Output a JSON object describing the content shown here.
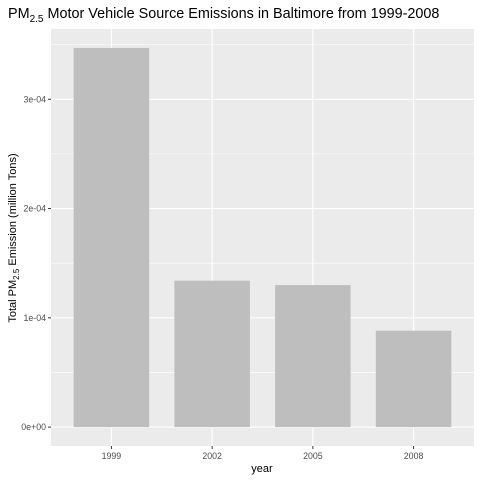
{
  "chart_data": {
    "type": "bar",
    "title": {
      "pre": "PM",
      "sub": "2.5",
      "post": " Motor Vehicle Source Emissions in Baltimore from 1999-2008"
    },
    "xlabel": "year",
    "ylabel": {
      "pre": "Total PM",
      "sub": "2.5",
      "post": " Emission (million Tons)"
    },
    "categories": [
      "1999",
      "2002",
      "2005",
      "2008"
    ],
    "values": [
      0.000347,
      0.000134,
      0.00013,
      8.82e-05
    ],
    "ylim": [
      -1.73e-05,
      0.0003643
    ],
    "yticks": [
      {
        "value": 0,
        "label": "0e+00"
      },
      {
        "value": 0.0001,
        "label": "1e-04"
      },
      {
        "value": 0.0002,
        "label": "2e-04"
      },
      {
        "value": 0.0003,
        "label": "3e-04"
      }
    ],
    "grid": true,
    "colors": {
      "panel": "#ebebeb",
      "grid": "#ffffff",
      "bar": "#bebebe",
      "tick": "#333333",
      "tick_label": "#4d4d4d"
    }
  }
}
